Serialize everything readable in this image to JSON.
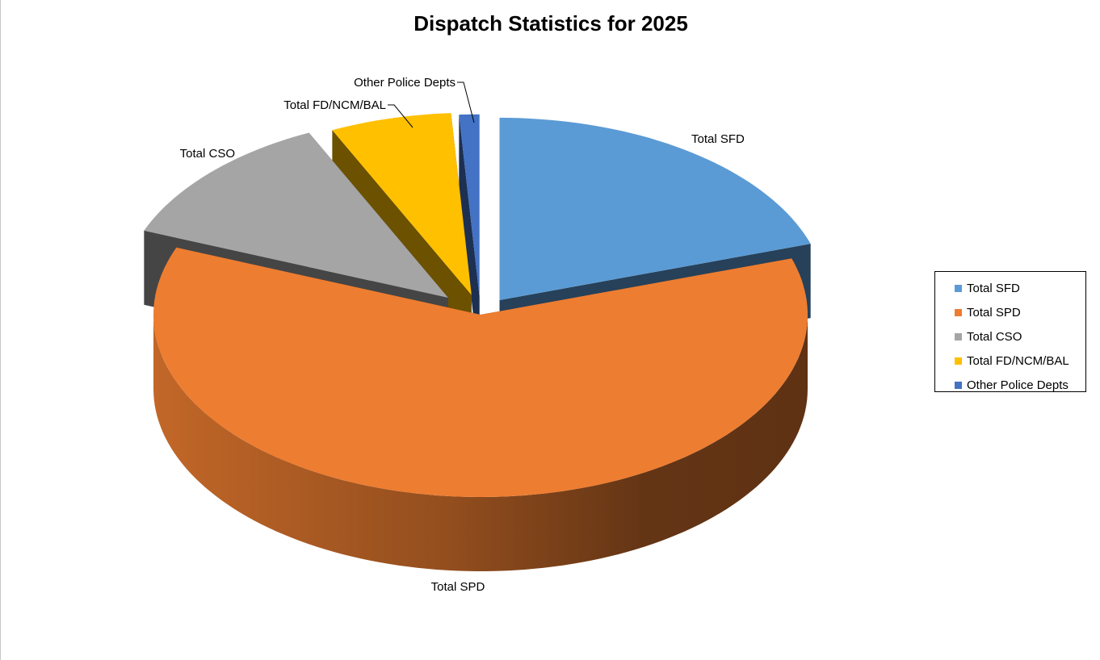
{
  "chart_data": {
    "type": "pie",
    "title": "Dispatch Statistics for 2025",
    "three_d": true,
    "exploded": true,
    "legend_position": "right",
    "slices": [
      {
        "label": "Total SFD",
        "value": 20,
        "color": "#5B9BD5"
      },
      {
        "label": "Total SPD",
        "value": 61,
        "color": "#ED7D31"
      },
      {
        "label": "Total CSO",
        "value": 12,
        "color": "#A5A5A5"
      },
      {
        "label": "Total FD/NCM/BAL",
        "value": 6,
        "color": "#FFC000"
      },
      {
        "label": "Other Police Depts",
        "value": 1,
        "color": "#4472C4"
      }
    ]
  }
}
